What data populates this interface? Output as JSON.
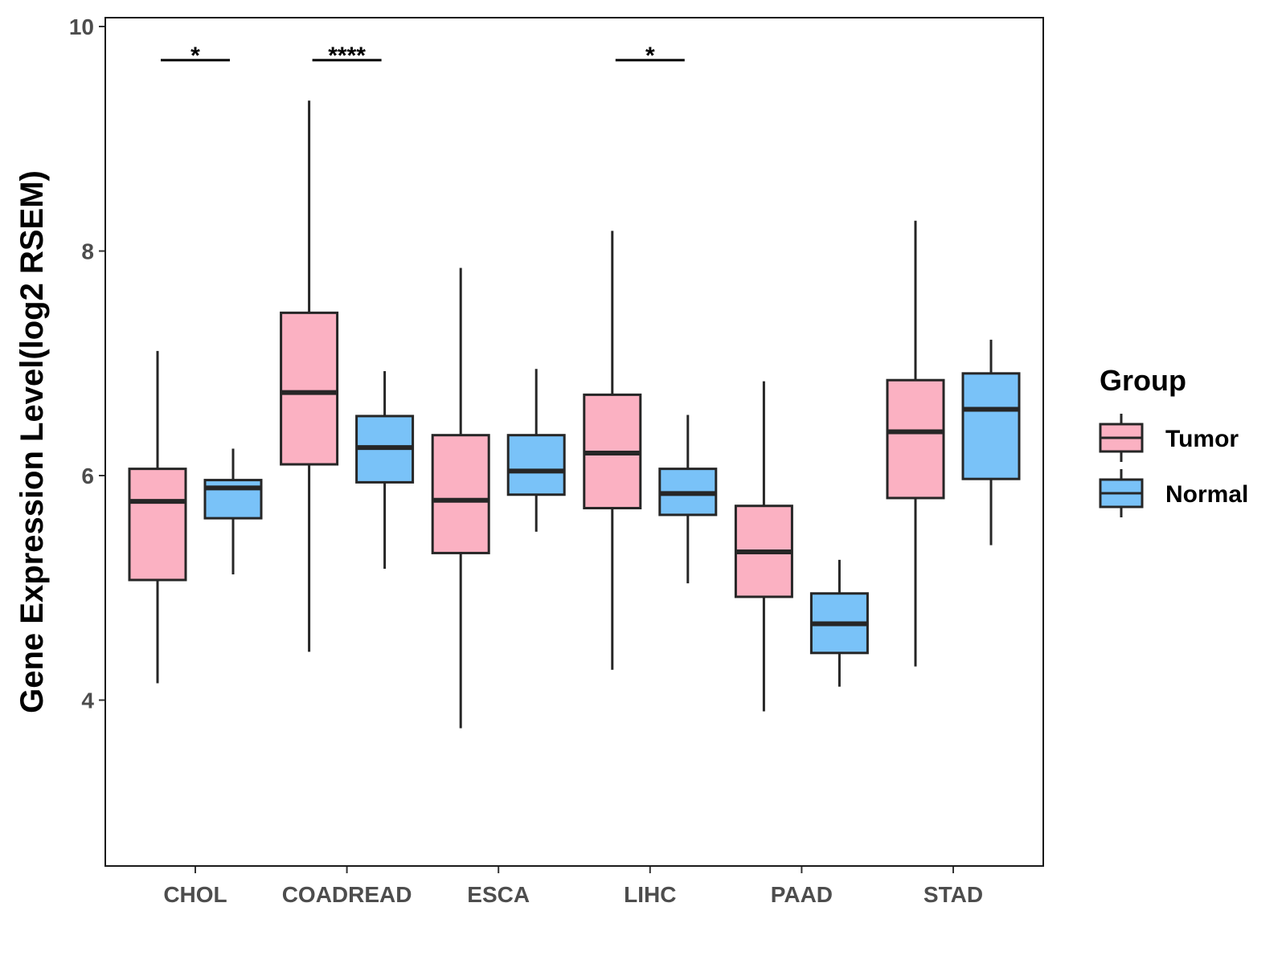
{
  "chart_data": {
    "type": "box",
    "title": "",
    "xlabel": "",
    "ylabel": "Gene Expression Level(log2 RSEM)",
    "ylim": [
      2.5,
      10.1
    ],
    "yticks": [
      4,
      6,
      8,
      10
    ],
    "grid": false,
    "legend": {
      "title": "Group",
      "position": "right",
      "entries": [
        "Tumor",
        "Normal"
      ]
    },
    "colors": {
      "Tumor": "#FBB1C2",
      "Normal": "#79C2F8",
      "stroke": "#262626"
    },
    "categories": [
      "CHOL",
      "COADREAD",
      "ESCA",
      "LIHC",
      "PAAD",
      "STAD"
    ],
    "series": [
      {
        "name": "Tumor",
        "boxes": [
          {
            "min": 4.15,
            "q1": 5.07,
            "median": 5.77,
            "q3": 6.06,
            "max": 7.11
          },
          {
            "min": 4.43,
            "q1": 6.1,
            "median": 6.74,
            "q3": 7.45,
            "max": 9.34
          },
          {
            "min": 3.75,
            "q1": 5.31,
            "median": 5.78,
            "q3": 6.36,
            "max": 7.85
          },
          {
            "min": 4.27,
            "q1": 5.71,
            "median": 6.2,
            "q3": 6.72,
            "max": 8.18
          },
          {
            "min": 3.9,
            "q1": 4.92,
            "median": 5.32,
            "q3": 5.73,
            "max": 6.84
          },
          {
            "min": 4.3,
            "q1": 5.8,
            "median": 6.39,
            "q3": 6.85,
            "max": 8.27
          }
        ]
      },
      {
        "name": "Normal",
        "boxes": [
          {
            "min": 5.12,
            "q1": 5.62,
            "median": 5.89,
            "q3": 5.96,
            "max": 6.24
          },
          {
            "min": 5.17,
            "q1": 5.94,
            "median": 6.25,
            "q3": 6.53,
            "max": 6.93
          },
          {
            "min": 5.5,
            "q1": 5.83,
            "median": 6.04,
            "q3": 6.36,
            "max": 6.95
          },
          {
            "min": 5.04,
            "q1": 5.65,
            "median": 5.84,
            "q3": 6.06,
            "max": 6.54
          },
          {
            "min": 4.12,
            "q1": 4.42,
            "median": 4.68,
            "q3": 4.95,
            "max": 5.25
          },
          {
            "min": 5.38,
            "q1": 5.97,
            "median": 6.59,
            "q3": 6.91,
            "max": 7.21
          }
        ]
      }
    ],
    "annotations": [
      {
        "category": "CHOL",
        "label": "*",
        "y": 9.7
      },
      {
        "category": "COADREAD",
        "label": "****",
        "y": 9.7
      },
      {
        "category": "LIHC",
        "label": "*",
        "y": 9.7
      }
    ]
  }
}
